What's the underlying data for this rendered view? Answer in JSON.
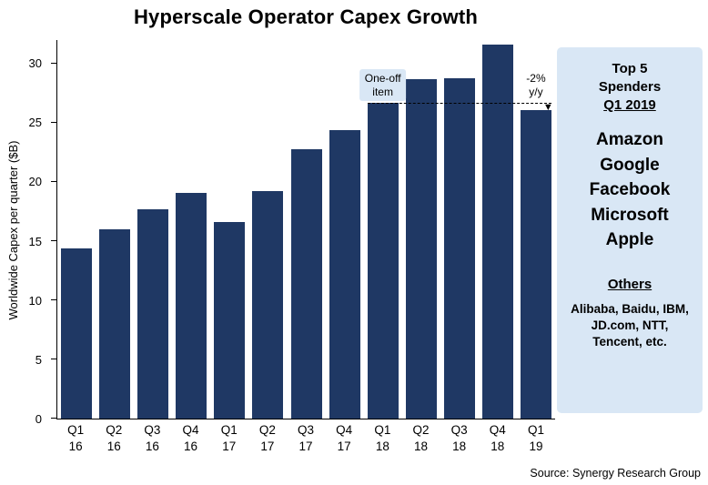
{
  "chart_data": {
    "type": "bar",
    "title": "Hyperscale Operator Capex Growth",
    "ylabel": "Worldwide  Capex  per quarter  ($B)",
    "categories": [
      "Q1 16",
      "Q2 16",
      "Q3 16",
      "Q4 16",
      "Q1 17",
      "Q2 17",
      "Q3 17",
      "Q4 17",
      "Q1 18",
      "Q2 18",
      "Q3 18",
      "Q4 18",
      "Q1 19"
    ],
    "values": [
      14.4,
      16.0,
      17.7,
      19.1,
      16.6,
      19.2,
      22.8,
      24.4,
      26.7,
      28.7,
      28.8,
      31.6,
      26.1
    ],
    "ylim": [
      0,
      32
    ],
    "yticks": [
      0,
      5,
      10,
      15,
      20,
      25,
      30
    ],
    "grid": false,
    "legend": "none",
    "bar_color": "#1f3864",
    "annotations": [
      {
        "id": "one-off",
        "text": "One-off\nitem",
        "bar_index": 8,
        "bg": "#d9e7f5"
      },
      {
        "id": "yoy",
        "text": "-2%\ny/y",
        "bar_index": 12,
        "bg": "transparent"
      }
    ],
    "ref_line": {
      "value": 26.6,
      "from_index": 8,
      "to_index": 12,
      "style": "dashed",
      "arrow": "down"
    }
  },
  "side_panel": {
    "heading": "Top 5\nSpenders",
    "period": "Q1 2019",
    "top5": [
      "Amazon",
      "Google",
      "Facebook",
      "Microsoft",
      "Apple"
    ],
    "others_heading": "Others",
    "others_text": "Alibaba, Baidu, IBM, JD.com, NTT, Tencent, etc.",
    "bg_color": "#d9e7f5"
  },
  "footer": {
    "source": "Source:  Synergy Research Group"
  }
}
